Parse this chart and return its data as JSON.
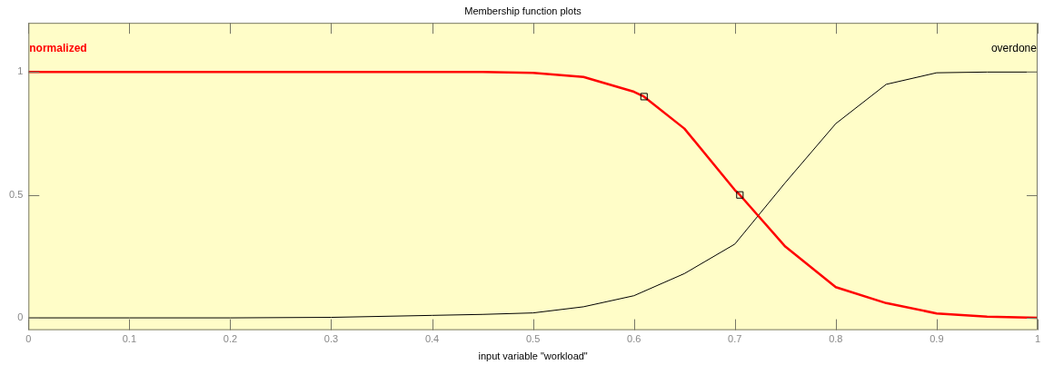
{
  "chart_data": {
    "type": "line",
    "title": "Membership function plots",
    "xlabel": "input variable \"workload\"",
    "xlim": [
      0,
      1
    ],
    "xticks": [
      0,
      0.1,
      0.2,
      0.3,
      0.4,
      0.5,
      0.6,
      0.7,
      0.8,
      0.9,
      1
    ],
    "ylim": [
      -0.05,
      1.2
    ],
    "yticks": [
      0,
      0.5,
      1
    ],
    "grid": false,
    "legend": false,
    "marker": "none",
    "line_style": "solid",
    "series": [
      {
        "name": "normalized",
        "color": "#ff0000",
        "x": [
          0,
          0.1,
          0.2,
          0.3,
          0.4,
          0.45,
          0.5,
          0.55,
          0.6,
          0.61,
          0.65,
          0.7,
          0.705,
          0.75,
          0.8,
          0.85,
          0.9,
          0.95,
          1
        ],
        "values": [
          1,
          1,
          1,
          1,
          1,
          1,
          0.997,
          0.98,
          0.92,
          0.9,
          0.77,
          0.52,
          0.5,
          0.29,
          0.125,
          0.06,
          0.018,
          0.005,
          0
        ]
      },
      {
        "name": "overdone",
        "color": "#000000",
        "x": [
          0,
          0.1,
          0.2,
          0.3,
          0.4,
          0.45,
          0.5,
          0.55,
          0.6,
          0.65,
          0.7,
          0.75,
          0.8,
          0.85,
          0.9,
          0.95,
          1
        ],
        "values": [
          0,
          0,
          0,
          0.002,
          0.01,
          0.014,
          0.02,
          0.045,
          0.09,
          0.18,
          0.3,
          0.55,
          0.79,
          0.95,
          0.997,
          1,
          1
        ]
      },
      {
        "type": "scatter",
        "marker": "square",
        "color": "#000000",
        "x": [
          0.61,
          0.705
        ],
        "values": [
          0.9,
          0.5
        ]
      }
    ]
  }
}
